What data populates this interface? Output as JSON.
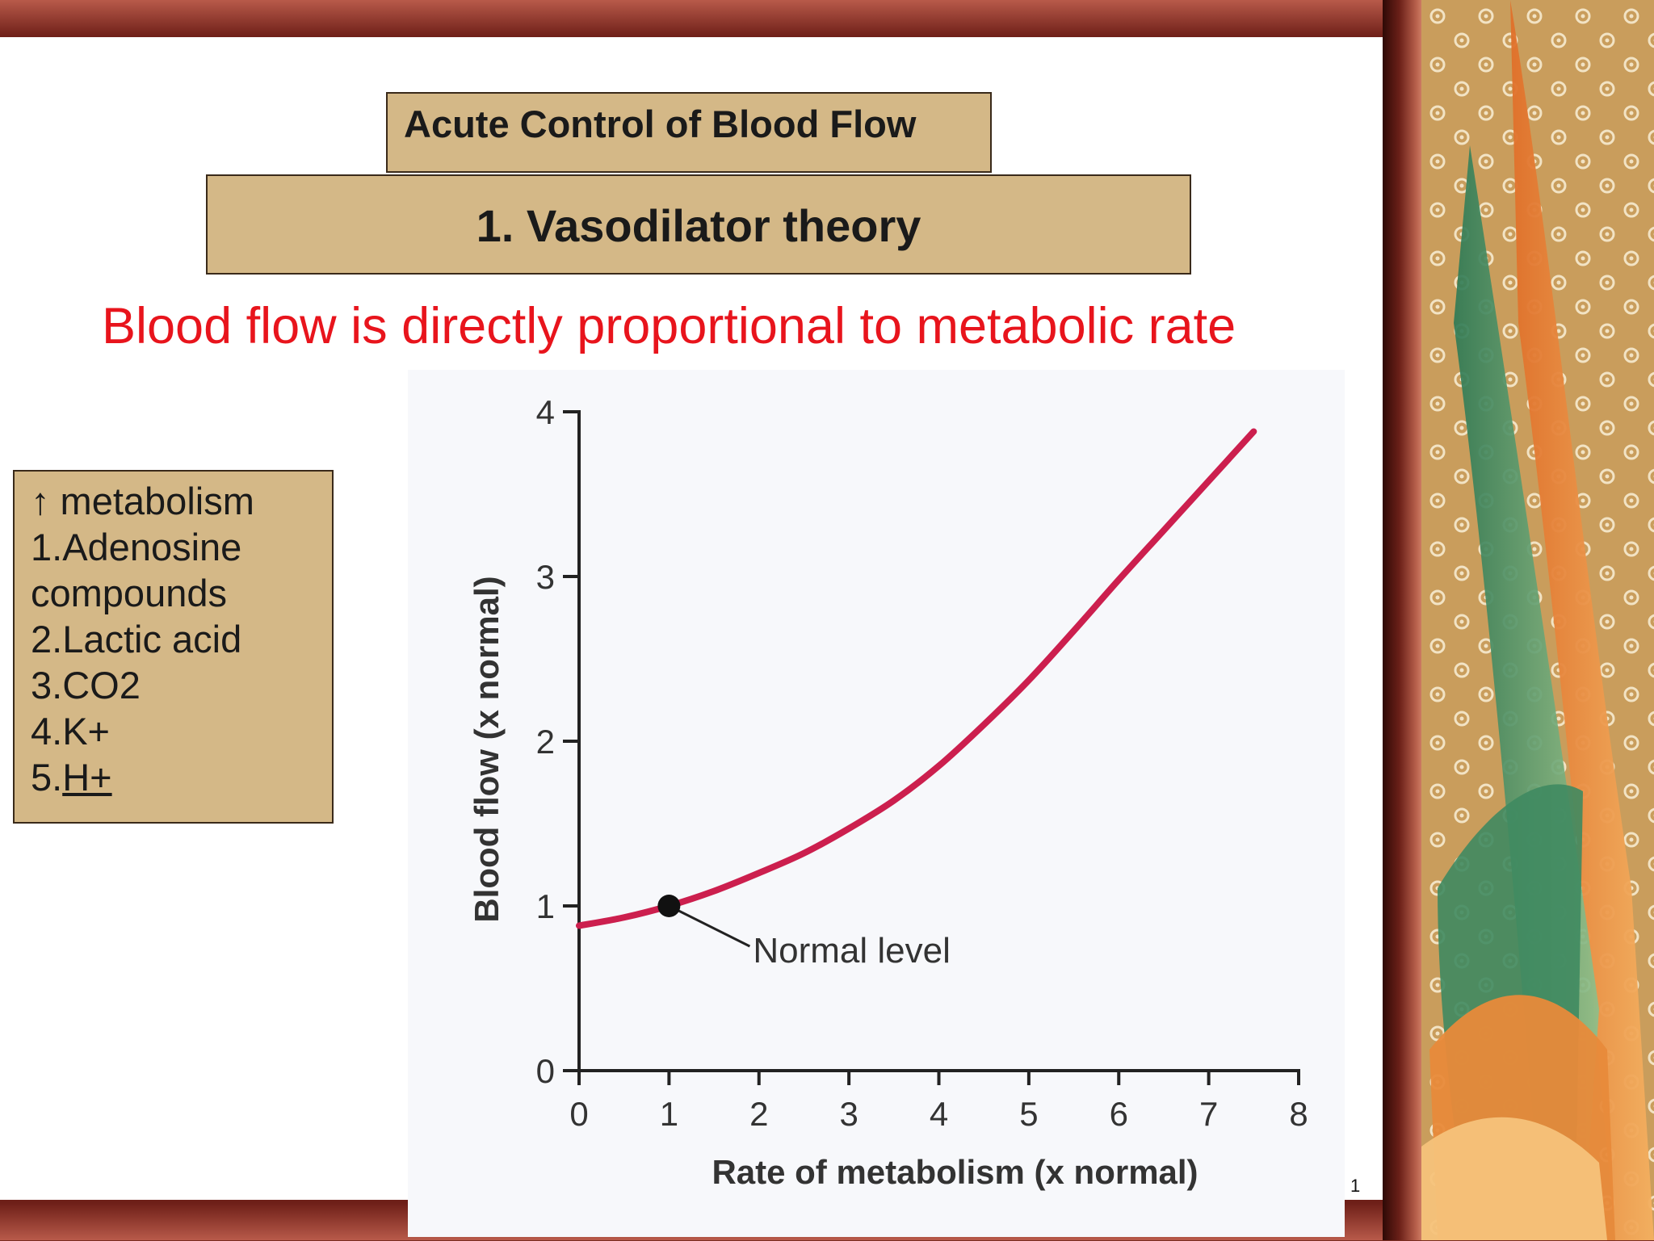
{
  "slide": {
    "title": "Acute Control of Blood Flow",
    "subtitle": "1. Vasodilator theory",
    "headline": "Blood flow is directly proportional to metabolic rate",
    "side_box": {
      "lines": [
        "↑ metabolism",
        "1.Adenosine",
        "compounds",
        "2.Lactic acid",
        "3.CO2",
        "4.K+"
      ],
      "last_prefix": "5.",
      "last_underlined": "H+"
    },
    "page_number": "1"
  },
  "colors": {
    "box_fill": "#d4b887",
    "headline": "#e8141c",
    "curve": "#cc1f4e",
    "frame": "#5a1a12"
  },
  "chart_data": {
    "type": "line",
    "title": "",
    "xlabel": "Rate of metabolism (x normal)",
    "ylabel": "Blood flow (x normal)",
    "xlim": [
      0,
      8
    ],
    "ylim": [
      0,
      4
    ],
    "x_ticks": [
      "0",
      "1",
      "2",
      "3",
      "4",
      "5",
      "6",
      "7",
      "8"
    ],
    "y_ticks": [
      "0",
      "1",
      "2",
      "3",
      "4"
    ],
    "grid": false,
    "series": [
      {
        "x": [
          0,
          0.5,
          1,
          1.5,
          2,
          2.5,
          3,
          3.5,
          4,
          4.5,
          5,
          5.5,
          6,
          6.5,
          7,
          7.5
        ],
        "y": [
          0.88,
          0.93,
          1.0,
          1.09,
          1.2,
          1.32,
          1.47,
          1.64,
          1.85,
          2.1,
          2.37,
          2.67,
          2.98,
          3.28,
          3.58,
          3.88
        ]
      }
    ],
    "annotations": [
      {
        "text": "Normal level",
        "x": 1,
        "y": 1
      }
    ]
  }
}
